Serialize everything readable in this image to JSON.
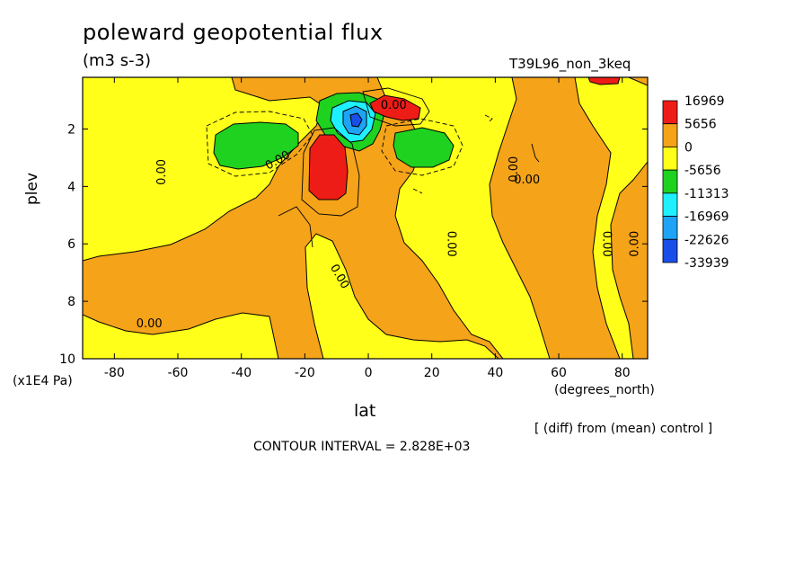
{
  "chart_data": {
    "type": "heatmap",
    "title": "poleward geopotential flux",
    "units": "(m3 s-3)",
    "run_label": "T39L96_non_3keq",
    "xlabel": "lat",
    "x_unit": "(degrees_north)",
    "ylabel": "plev",
    "y_unit": "(x1E4 Pa)",
    "note": "[ (diff) from (mean) control ]",
    "contour_interval": "CONTOUR INTERVAL = 2.828E+03",
    "xlim": [
      -90,
      88
    ],
    "ylim": [
      10,
      0.2
    ],
    "xticks": [
      "-80",
      "-60",
      "-40",
      "-20",
      "0",
      "20",
      "40",
      "60",
      "80"
    ],
    "xtick_values": [
      -80,
      -60,
      -40,
      -20,
      0,
      20,
      40,
      60,
      80
    ],
    "yticks": [
      "2",
      "4",
      "6",
      "8",
      "10"
    ],
    "ytick_values": [
      2,
      4,
      6,
      8,
      10
    ],
    "colorbar": {
      "labels": [
        "16969",
        "5656",
        "0",
        "-5656",
        "-11313",
        "-16969",
        "-22626",
        "-33939"
      ],
      "colors": [
        "#ee1c16",
        "#f5a319",
        "#ffff1a",
        "#1fd21f",
        "#1ff0ff",
        "#1ea3f5",
        "#1a4ee8"
      ]
    },
    "contour_labels": [
      "0.00",
      "0.00",
      "0.00",
      "0.00",
      "0.00",
      "0.00",
      "0.00",
      "0.00",
      "0.00",
      "0.00"
    ],
    "regions": [
      {
        "name": "negative-green-south",
        "lat_range": [
          -47,
          -27
        ],
        "plev_range": [
          1.8,
          3.2
        ],
        "sign": "negative"
      },
      {
        "name": "negative-green-north",
        "lat_range": [
          9,
          28
        ],
        "plev_range": [
          1.9,
          3.5
        ],
        "sign": "negative"
      },
      {
        "name": "negative-blue-core",
        "lat_range": [
          -14,
          5
        ],
        "plev_range": [
          0.7,
          2.4
        ],
        "sign": "negative"
      },
      {
        "name": "positive-red-column",
        "lat_range": [
          -17,
          -7
        ],
        "plev_range": [
          2.0,
          4.3
        ],
        "sign": "positive"
      },
      {
        "name": "positive-red-upper",
        "lat_range": [
          2,
          18
        ],
        "plev_range": [
          0.6,
          1.5
        ],
        "sign": "positive"
      },
      {
        "name": "positive-red-top",
        "lat_range": [
          69,
          78
        ],
        "plev_range": [
          0.2,
          0.4
        ],
        "sign": "positive"
      }
    ]
  }
}
